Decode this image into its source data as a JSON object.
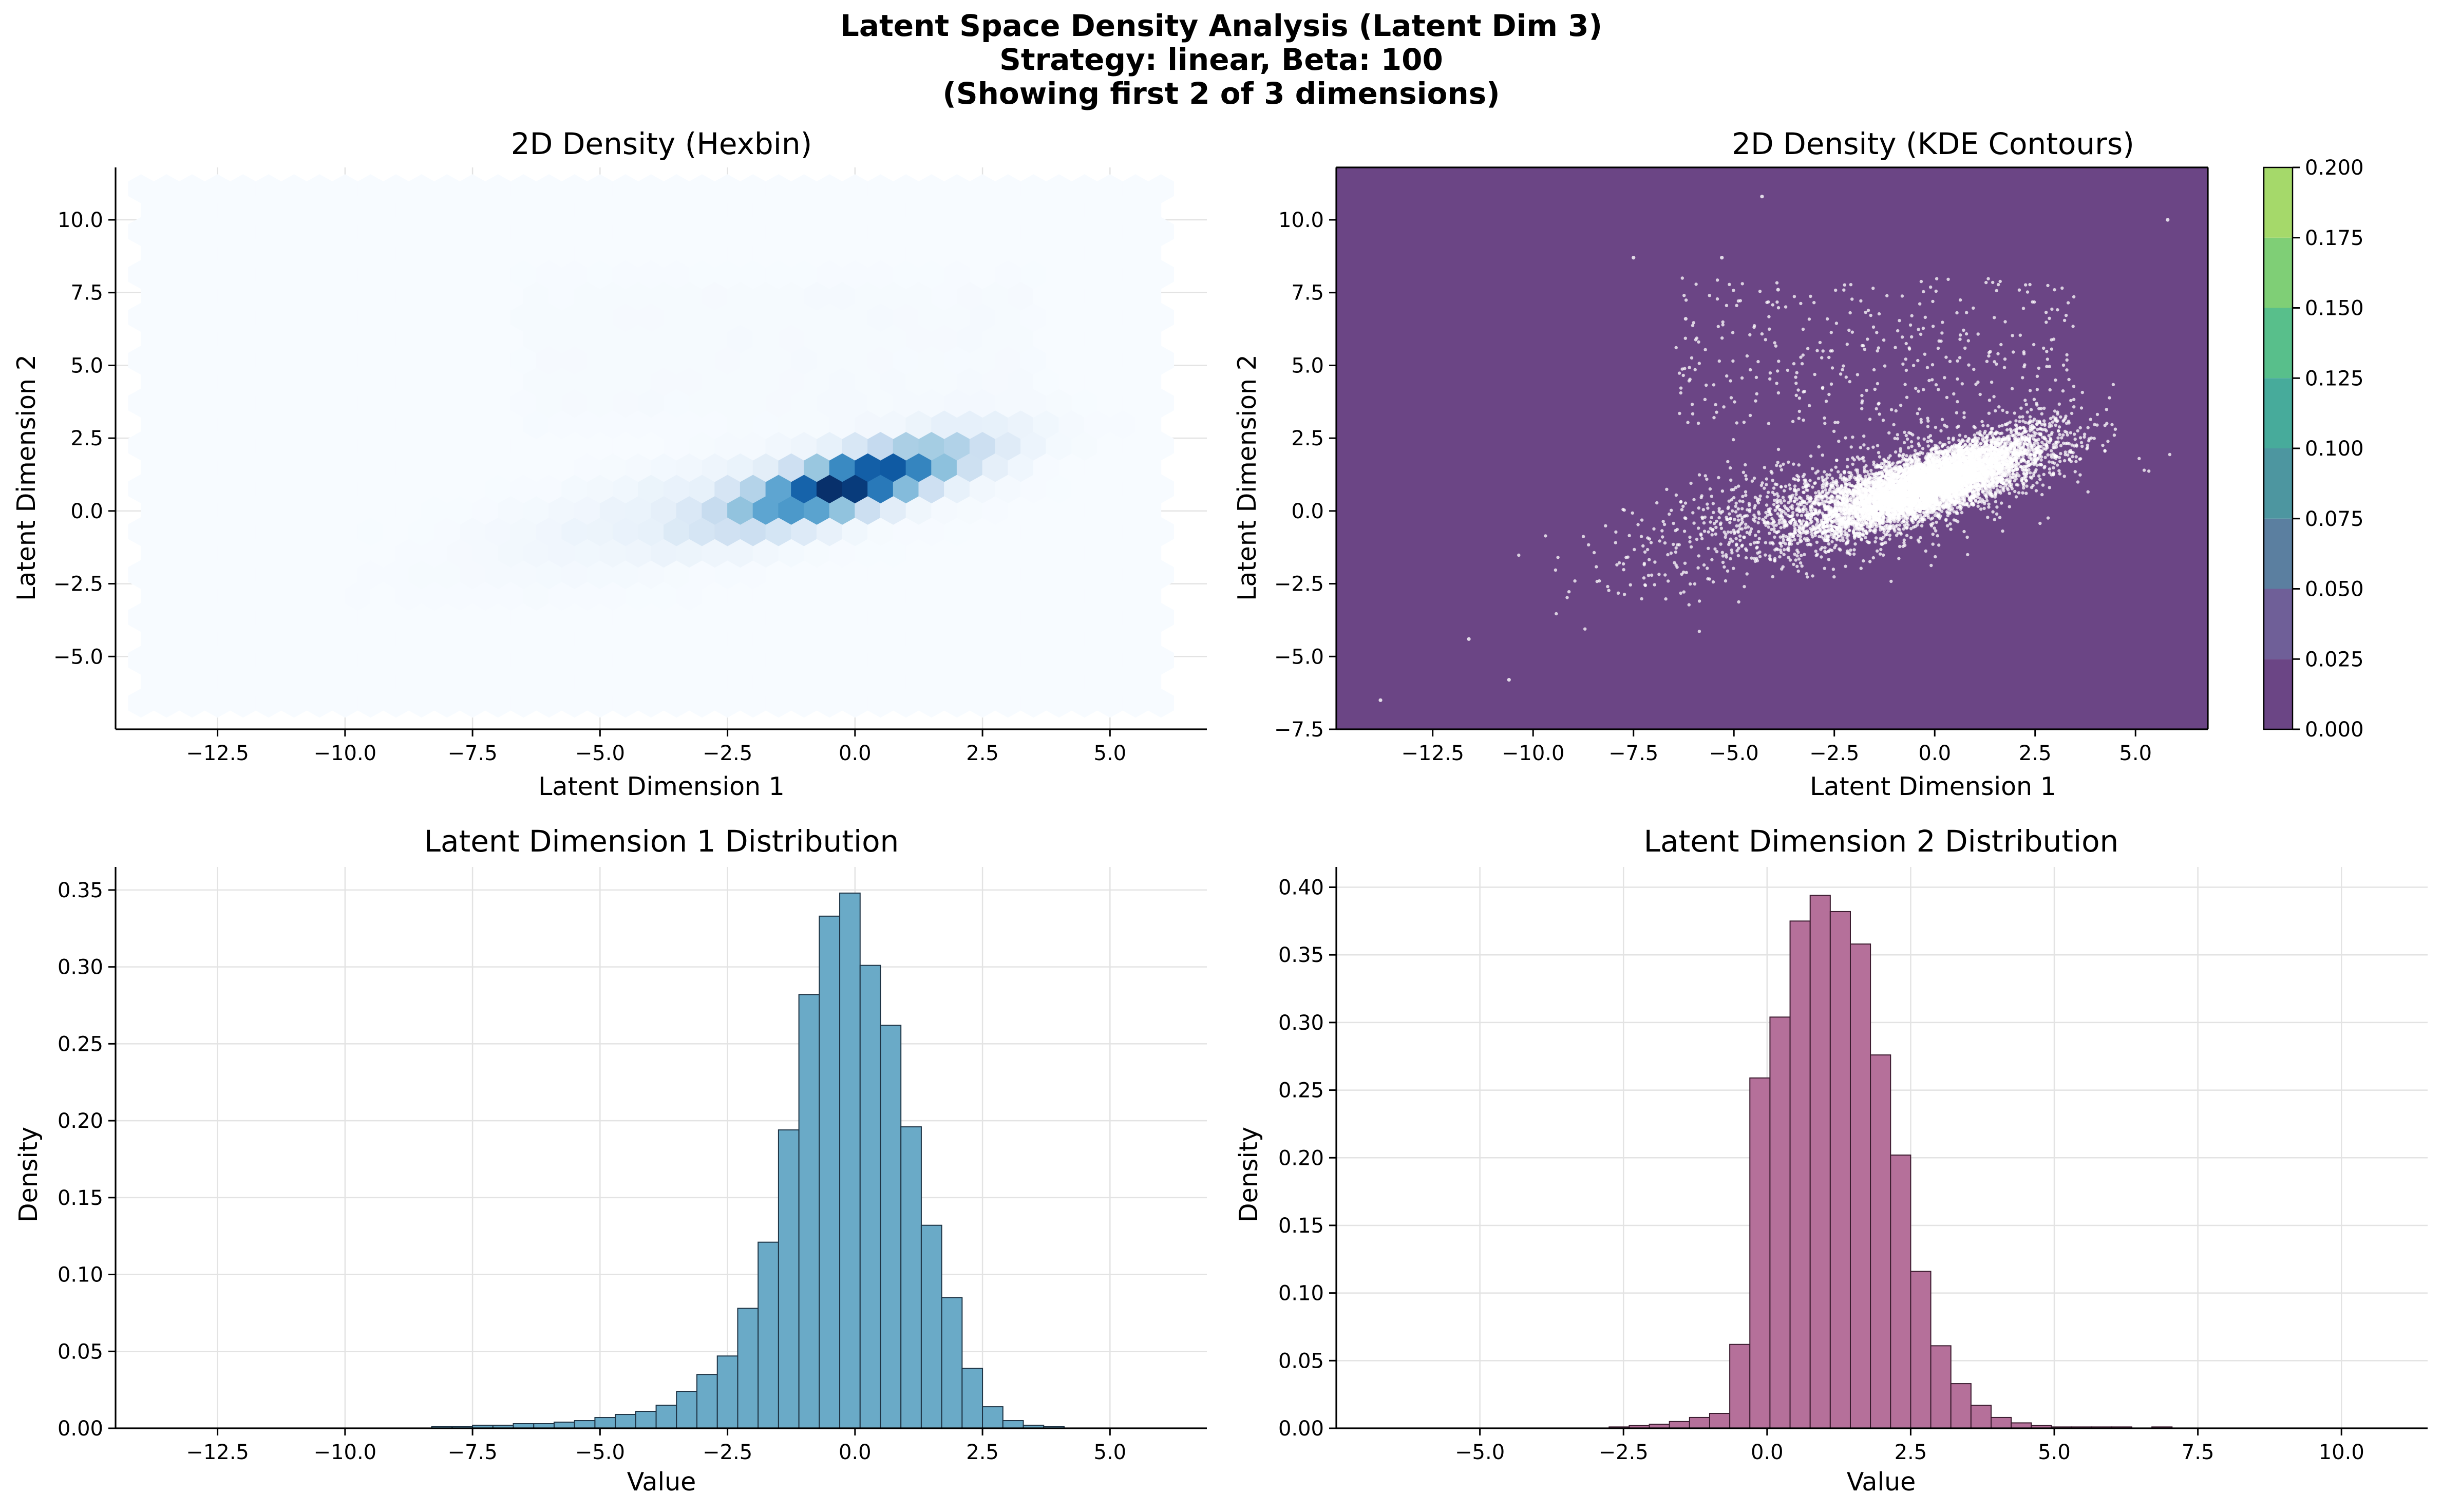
{
  "figure": {
    "title_lines": [
      "Latent Space Density Analysis (Latent Dim 3)",
      "Strategy: linear, Beta: 100",
      "(Showing first 2 of 3 dimensions)"
    ]
  },
  "chart_data": [
    {
      "id": "hexbin",
      "type": "heatmap",
      "title": "2D Density (Hexbin)",
      "xlabel": "Latent Dimension 1",
      "ylabel": "Latent Dimension 2",
      "xlim": [
        -14.5,
        6.9
      ],
      "ylim": [
        -7.5,
        11.8
      ],
      "xticks": [
        -12.5,
        -10.0,
        -7.5,
        -5.0,
        -2.5,
        0.0,
        2.5,
        5.0
      ],
      "yticks": [
        -5.0,
        -2.5,
        0.0,
        2.5,
        5.0,
        7.5,
        10.0
      ],
      "xtick_labels": [
        "−12.5",
        "−10.0",
        "−7.5",
        "−5.0",
        "−2.5",
        "0.0",
        "2.5",
        "5.0"
      ],
      "ytick_labels": [
        "−5.0",
        "−2.5",
        "0.0",
        "2.5",
        "5.0",
        "7.5",
        "10.0"
      ],
      "grid": true,
      "colormap": "Blues",
      "extent": {
        "x": [
          -14.0,
          6.0
        ],
        "y": [
          -6.6,
          11.0
        ]
      },
      "bins_hint": "hexagonal bins, gridsize approx 40",
      "peak": {
        "x": -0.1,
        "y": 0.1
      }
    },
    {
      "id": "kde",
      "type": "scatter",
      "title": "2D Density (KDE Contours)",
      "xlabel": "Latent Dimension 1",
      "ylabel": "Latent Dimension 2",
      "xlim": [
        -14.9,
        6.8
      ],
      "ylim": [
        -7.5,
        11.8
      ],
      "xticks": [
        -12.5,
        -10.0,
        -7.5,
        -5.0,
        -2.5,
        0.0,
        2.5,
        5.0
      ],
      "yticks": [
        -7.5,
        -5.0,
        -2.5,
        0.0,
        2.5,
        5.0,
        7.5,
        10.0
      ],
      "xtick_labels": [
        "−12.5",
        "−10.0",
        "−7.5",
        "−5.0",
        "−2.5",
        "0.0",
        "2.5",
        "5.0"
      ],
      "ytick_labels": [
        "−7.5",
        "−5.0",
        "−2.5",
        "0.0",
        "2.5",
        "5.0",
        "7.5",
        "10.0"
      ],
      "background_color": "#6b4585",
      "point_color": "#ffffff",
      "colorbar": {
        "colormap": "viridis",
        "levels": [
          0.0,
          0.025,
          0.05,
          0.075,
          0.1,
          0.125,
          0.15,
          0.175,
          0.2
        ],
        "tick_labels": [
          "0.000",
          "0.025",
          "0.050",
          "0.075",
          "0.100",
          "0.125",
          "0.150",
          "0.175",
          "0.200"
        ],
        "colors": [
          "#6b4585",
          "#6f5f98",
          "#5b7fa0",
          "#4d96a0",
          "#47ab9b",
          "#58bf8b",
          "#7fcf76",
          "#a5d96a",
          "#dde341"
        ]
      },
      "point_cloud": {
        "center": [
          -0.2,
          0.9
        ],
        "core_spread": [
          1.8,
          0.8
        ],
        "outlier_examples": [
          [
            -13.8,
            -6.5
          ],
          [
            -10.6,
            -5.8
          ],
          [
            -11.6,
            -4.4
          ],
          [
            -7.5,
            8.7
          ],
          [
            -6.2,
            6.6
          ],
          [
            -5.3,
            8.7
          ],
          [
            -4.3,
            10.8
          ],
          [
            5.8,
            10.0
          ],
          [
            -3.9,
            7.6
          ]
        ]
      }
    },
    {
      "id": "hist1",
      "type": "bar",
      "title": "Latent Dimension 1 Distribution",
      "xlabel": "Value",
      "ylabel": "Density",
      "xlim": [
        -14.5,
        6.9
      ],
      "ylim": [
        0,
        0.365
      ],
      "xticks": [
        -12.5,
        -10.0,
        -7.5,
        -5.0,
        -2.5,
        0.0,
        2.5,
        5.0
      ],
      "yticks": [
        0.0,
        0.05,
        0.1,
        0.15,
        0.2,
        0.25,
        0.3,
        0.35
      ],
      "xtick_labels": [
        "−12.5",
        "−10.0",
        "−7.5",
        "−5.0",
        "−2.5",
        "0.0",
        "2.5",
        "5.0"
      ],
      "ytick_labels": [
        "0.00",
        "0.05",
        "0.10",
        "0.15",
        "0.20",
        "0.25",
        "0.30",
        "0.35"
      ],
      "grid": true,
      "color": "#6aaac7",
      "edge_color": "#1e3344",
      "bins_start": -13.9,
      "bin_width": 0.4,
      "values": [
        0,
        0,
        0,
        0,
        0,
        0,
        0,
        0,
        0,
        0,
        0,
        0,
        0,
        0,
        0.001,
        0.001,
        0.002,
        0.002,
        0.003,
        0.003,
        0.004,
        0.005,
        0.007,
        0.009,
        0.011,
        0.015,
        0.024,
        0.035,
        0.047,
        0.078,
        0.121,
        0.194,
        0.282,
        0.333,
        0.348,
        0.301,
        0.262,
        0.196,
        0.132,
        0.085,
        0.039,
        0.014,
        0.005,
        0.002,
        0.001,
        0
      ]
    },
    {
      "id": "hist2",
      "type": "bar",
      "title": "Latent Dimension 2 Distribution",
      "xlabel": "Value",
      "ylabel": "Density",
      "xlim": [
        -7.5,
        11.5
      ],
      "ylim": [
        0,
        0.415
      ],
      "xticks": [
        -5.0,
        -2.5,
        0.0,
        2.5,
        5.0,
        7.5,
        10.0
      ],
      "yticks": [
        0.0,
        0.05,
        0.1,
        0.15,
        0.2,
        0.25,
        0.3,
        0.35,
        0.4
      ],
      "xtick_labels": [
        "−5.0",
        "−2.5",
        "0.0",
        "2.5",
        "5.0",
        "7.5",
        "10.0"
      ],
      "ytick_labels": [
        "0.00",
        "0.05",
        "0.10",
        "0.15",
        "0.20",
        "0.25",
        "0.30",
        "0.35",
        "0.40"
      ],
      "grid": true,
      "color": "#b5709a",
      "edge_color": "#3a1b2e",
      "bins_start": -6.6,
      "bin_width": 0.35,
      "values": [
        0,
        0,
        0,
        0,
        0,
        0,
        0,
        0,
        0,
        0,
        0,
        0.001,
        0.002,
        0.003,
        0.005,
        0.008,
        0.011,
        0.062,
        0.259,
        0.304,
        0.375,
        0.394,
        0.382,
        0.358,
        0.276,
        0.202,
        0.116,
        0.061,
        0.033,
        0.017,
        0.008,
        0.004,
        0.002,
        0.001,
        0.001,
        0.001,
        0.001,
        0,
        0.001,
        0,
        0,
        0,
        0,
        0,
        0,
        0,
        0,
        0,
        0,
        0,
        0,
        0
      ]
    }
  ]
}
